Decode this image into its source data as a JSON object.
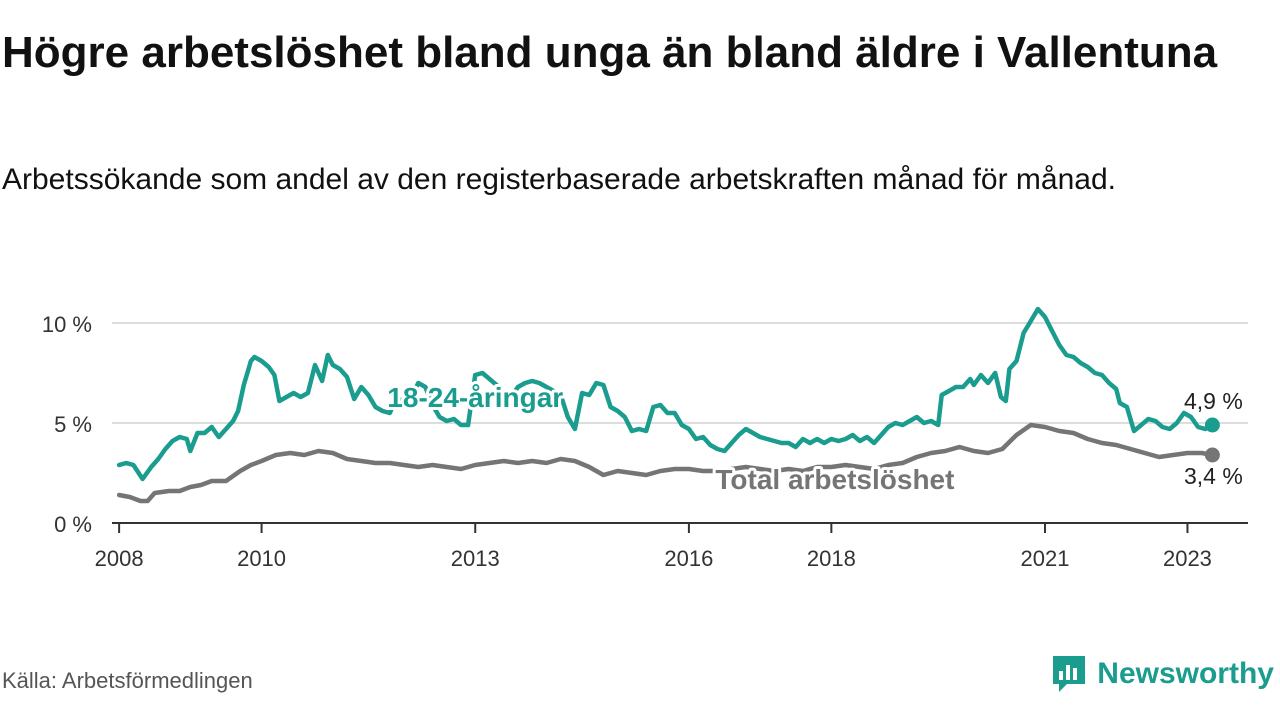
{
  "title": "Högre arbetslöshet bland unga än bland äldre i Vallentuna",
  "subtitle": "Arbetssökande som andel av den registerbaserade arbetskraften månad för månad.",
  "source": "Källa: Arbetsförmedlingen",
  "brand": "Newsworthy",
  "colors": {
    "youth": "#1a9d8f",
    "total": "#757575",
    "axis": "#333333",
    "grid": "#dddddd",
    "brand": "#1a9d8f"
  },
  "chart_data": {
    "type": "line",
    "title": "Högre arbetslöshet bland unga än bland äldre i Vallentuna",
    "xlabel": "",
    "ylabel": "",
    "xlim": [
      2007.9,
      2023.85
    ],
    "ylim": [
      0,
      10
    ],
    "yticks": [
      {
        "value": 0,
        "label": "0 %"
      },
      {
        "value": 5,
        "label": "5 %"
      },
      {
        "value": 10,
        "label": "10 %"
      }
    ],
    "xticks": [
      {
        "value": 2008,
        "label": "2008"
      },
      {
        "value": 2010,
        "label": "2010"
      },
      {
        "value": 2013,
        "label": "2013"
      },
      {
        "value": 2016,
        "label": "2016"
      },
      {
        "value": 2018,
        "label": "2018"
      },
      {
        "value": 2021,
        "label": "2021"
      },
      {
        "value": 2023,
        "label": "2023"
      }
    ],
    "series": [
      {
        "name": "18-24-åringar",
        "color": "#1a9d8f",
        "end_label": "4,9 %",
        "points": [
          [
            2008.0,
            2.9
          ],
          [
            2008.1,
            3.0
          ],
          [
            2008.2,
            2.9
          ],
          [
            2008.33,
            2.2
          ],
          [
            2008.45,
            2.8
          ],
          [
            2008.55,
            3.2
          ],
          [
            2008.65,
            3.7
          ],
          [
            2008.75,
            4.1
          ],
          [
            2008.85,
            4.3
          ],
          [
            2008.95,
            4.2
          ],
          [
            2009.0,
            3.6
          ],
          [
            2009.1,
            4.5
          ],
          [
            2009.2,
            4.5
          ],
          [
            2009.3,
            4.8
          ],
          [
            2009.4,
            4.3
          ],
          [
            2009.5,
            4.7
          ],
          [
            2009.6,
            5.1
          ],
          [
            2009.67,
            5.6
          ],
          [
            2009.75,
            6.9
          ],
          [
            2009.85,
            8.1
          ],
          [
            2009.9,
            8.3
          ],
          [
            2010.0,
            8.1
          ],
          [
            2010.1,
            7.8
          ],
          [
            2010.18,
            7.4
          ],
          [
            2010.25,
            6.1
          ],
          [
            2010.35,
            6.3
          ],
          [
            2010.45,
            6.5
          ],
          [
            2010.55,
            6.3
          ],
          [
            2010.65,
            6.5
          ],
          [
            2010.75,
            7.9
          ],
          [
            2010.85,
            7.1
          ],
          [
            2010.93,
            8.4
          ],
          [
            2011.0,
            7.9
          ],
          [
            2011.1,
            7.7
          ],
          [
            2011.2,
            7.3
          ],
          [
            2011.3,
            6.2
          ],
          [
            2011.4,
            6.8
          ],
          [
            2011.5,
            6.4
          ],
          [
            2011.6,
            5.8
          ],
          [
            2011.7,
            5.6
          ],
          [
            2011.8,
            5.5
          ],
          [
            2011.9,
            6.3
          ],
          [
            2012.0,
            6.0
          ],
          [
            2012.1,
            6.3
          ],
          [
            2012.2,
            7.0
          ],
          [
            2012.3,
            6.8
          ],
          [
            2012.4,
            5.9
          ],
          [
            2012.5,
            5.3
          ],
          [
            2012.6,
            5.1
          ],
          [
            2012.7,
            5.2
          ],
          [
            2012.8,
            4.9
          ],
          [
            2012.9,
            4.9
          ],
          [
            2013.0,
            7.4
          ],
          [
            2013.1,
            7.5
          ],
          [
            2013.2,
            7.2
          ],
          [
            2013.3,
            6.9
          ],
          [
            2013.4,
            6.4
          ],
          [
            2013.5,
            6.3
          ],
          [
            2013.6,
            6.8
          ],
          [
            2013.7,
            7.0
          ],
          [
            2013.8,
            7.1
          ],
          [
            2013.9,
            7.0
          ],
          [
            2014.0,
            6.8
          ],
          [
            2014.1,
            6.6
          ],
          [
            2014.2,
            6.4
          ],
          [
            2014.3,
            5.3
          ],
          [
            2014.4,
            4.7
          ],
          [
            2014.5,
            6.5
          ],
          [
            2014.6,
            6.4
          ],
          [
            2014.7,
            7.0
          ],
          [
            2014.8,
            6.9
          ],
          [
            2014.9,
            5.8
          ],
          [
            2015.0,
            5.6
          ],
          [
            2015.1,
            5.3
          ],
          [
            2015.2,
            4.6
          ],
          [
            2015.3,
            4.7
          ],
          [
            2015.4,
            4.6
          ],
          [
            2015.5,
            5.8
          ],
          [
            2015.6,
            5.9
          ],
          [
            2015.7,
            5.5
          ],
          [
            2015.8,
            5.5
          ],
          [
            2015.9,
            4.9
          ],
          [
            2016.0,
            4.7
          ],
          [
            2016.1,
            4.2
          ],
          [
            2016.2,
            4.3
          ],
          [
            2016.3,
            3.9
          ],
          [
            2016.4,
            3.7
          ],
          [
            2016.5,
            3.6
          ],
          [
            2016.6,
            4.0
          ],
          [
            2016.7,
            4.4
          ],
          [
            2016.8,
            4.7
          ],
          [
            2016.9,
            4.5
          ],
          [
            2017.0,
            4.3
          ],
          [
            2017.1,
            4.2
          ],
          [
            2017.2,
            4.1
          ],
          [
            2017.3,
            4.0
          ],
          [
            2017.4,
            4.0
          ],
          [
            2017.5,
            3.8
          ],
          [
            2017.6,
            4.2
          ],
          [
            2017.7,
            4.0
          ],
          [
            2017.8,
            4.2
          ],
          [
            2017.9,
            4.0
          ],
          [
            2018.0,
            4.2
          ],
          [
            2018.1,
            4.1
          ],
          [
            2018.2,
            4.2
          ],
          [
            2018.3,
            4.4
          ],
          [
            2018.4,
            4.1
          ],
          [
            2018.5,
            4.3
          ],
          [
            2018.6,
            4.0
          ],
          [
            2018.7,
            4.4
          ],
          [
            2018.8,
            4.8
          ],
          [
            2018.9,
            5.0
          ],
          [
            2019.0,
            4.9
          ],
          [
            2019.1,
            5.1
          ],
          [
            2019.2,
            5.3
          ],
          [
            2019.3,
            5.0
          ],
          [
            2019.4,
            5.1
          ],
          [
            2019.5,
            4.9
          ],
          [
            2019.55,
            6.4
          ],
          [
            2019.65,
            6.6
          ],
          [
            2019.75,
            6.8
          ],
          [
            2019.85,
            6.8
          ],
          [
            2019.95,
            7.2
          ],
          [
            2020.0,
            6.9
          ],
          [
            2020.1,
            7.4
          ],
          [
            2020.2,
            7.0
          ],
          [
            2020.3,
            7.5
          ],
          [
            2020.38,
            6.3
          ],
          [
            2020.45,
            6.1
          ],
          [
            2020.5,
            7.7
          ],
          [
            2020.6,
            8.1
          ],
          [
            2020.7,
            9.5
          ],
          [
            2020.8,
            10.1
          ],
          [
            2020.9,
            10.7
          ],
          [
            2021.0,
            10.3
          ],
          [
            2021.1,
            9.6
          ],
          [
            2021.2,
            8.9
          ],
          [
            2021.3,
            8.4
          ],
          [
            2021.4,
            8.3
          ],
          [
            2021.5,
            8.0
          ],
          [
            2021.6,
            7.8
          ],
          [
            2021.7,
            7.5
          ],
          [
            2021.8,
            7.4
          ],
          [
            2021.9,
            7.0
          ],
          [
            2022.0,
            6.7
          ],
          [
            2022.05,
            6.0
          ],
          [
            2022.15,
            5.8
          ],
          [
            2022.25,
            4.6
          ],
          [
            2022.35,
            4.9
          ],
          [
            2022.45,
            5.2
          ],
          [
            2022.55,
            5.1
          ],
          [
            2022.65,
            4.8
          ],
          [
            2022.75,
            4.7
          ],
          [
            2022.85,
            5.0
          ],
          [
            2022.95,
            5.5
          ],
          [
            2023.05,
            5.3
          ],
          [
            2023.15,
            4.8
          ],
          [
            2023.25,
            4.7
          ],
          [
            2023.35,
            4.9
          ]
        ]
      },
      {
        "name": "Total arbetslöshet",
        "color": "#757575",
        "end_label": "3,4 %",
        "points": [
          [
            2008.0,
            1.4
          ],
          [
            2008.15,
            1.3
          ],
          [
            2008.3,
            1.1
          ],
          [
            2008.4,
            1.1
          ],
          [
            2008.5,
            1.5
          ],
          [
            2008.7,
            1.6
          ],
          [
            2008.85,
            1.6
          ],
          [
            2009.0,
            1.8
          ],
          [
            2009.15,
            1.9
          ],
          [
            2009.3,
            2.1
          ],
          [
            2009.5,
            2.1
          ],
          [
            2009.7,
            2.6
          ],
          [
            2009.85,
            2.9
          ],
          [
            2010.0,
            3.1
          ],
          [
            2010.2,
            3.4
          ],
          [
            2010.4,
            3.5
          ],
          [
            2010.6,
            3.4
          ],
          [
            2010.8,
            3.6
          ],
          [
            2011.0,
            3.5
          ],
          [
            2011.2,
            3.2
          ],
          [
            2011.4,
            3.1
          ],
          [
            2011.6,
            3.0
          ],
          [
            2011.8,
            3.0
          ],
          [
            2012.0,
            2.9
          ],
          [
            2012.2,
            2.8
          ],
          [
            2012.4,
            2.9
          ],
          [
            2012.6,
            2.8
          ],
          [
            2012.8,
            2.7
          ],
          [
            2013.0,
            2.9
          ],
          [
            2013.2,
            3.0
          ],
          [
            2013.4,
            3.1
          ],
          [
            2013.6,
            3.0
          ],
          [
            2013.8,
            3.1
          ],
          [
            2014.0,
            3.0
          ],
          [
            2014.2,
            3.2
          ],
          [
            2014.4,
            3.1
          ],
          [
            2014.6,
            2.8
          ],
          [
            2014.8,
            2.4
          ],
          [
            2015.0,
            2.6
          ],
          [
            2015.2,
            2.5
          ],
          [
            2015.4,
            2.4
          ],
          [
            2015.6,
            2.6
          ],
          [
            2015.8,
            2.7
          ],
          [
            2016.0,
            2.7
          ],
          [
            2016.2,
            2.6
          ],
          [
            2016.4,
            2.6
          ],
          [
            2016.6,
            2.7
          ],
          [
            2016.8,
            2.8
          ],
          [
            2017.0,
            2.7
          ],
          [
            2017.2,
            2.6
          ],
          [
            2017.4,
            2.7
          ],
          [
            2017.6,
            2.6
          ],
          [
            2017.8,
            2.8
          ],
          [
            2018.0,
            2.8
          ],
          [
            2018.2,
            2.9
          ],
          [
            2018.4,
            2.8
          ],
          [
            2018.6,
            2.7
          ],
          [
            2018.8,
            2.9
          ],
          [
            2019.0,
            3.0
          ],
          [
            2019.2,
            3.3
          ],
          [
            2019.4,
            3.5
          ],
          [
            2019.6,
            3.6
          ],
          [
            2019.8,
            3.8
          ],
          [
            2020.0,
            3.6
          ],
          [
            2020.2,
            3.5
          ],
          [
            2020.4,
            3.7
          ],
          [
            2020.6,
            4.4
          ],
          [
            2020.8,
            4.9
          ],
          [
            2021.0,
            4.8
          ],
          [
            2021.2,
            4.6
          ],
          [
            2021.4,
            4.5
          ],
          [
            2021.6,
            4.2
          ],
          [
            2021.8,
            4.0
          ],
          [
            2022.0,
            3.9
          ],
          [
            2022.2,
            3.7
          ],
          [
            2022.4,
            3.5
          ],
          [
            2022.6,
            3.3
          ],
          [
            2022.8,
            3.4
          ],
          [
            2023.0,
            3.5
          ],
          [
            2023.2,
            3.5
          ],
          [
            2023.35,
            3.4
          ]
        ]
      }
    ]
  }
}
